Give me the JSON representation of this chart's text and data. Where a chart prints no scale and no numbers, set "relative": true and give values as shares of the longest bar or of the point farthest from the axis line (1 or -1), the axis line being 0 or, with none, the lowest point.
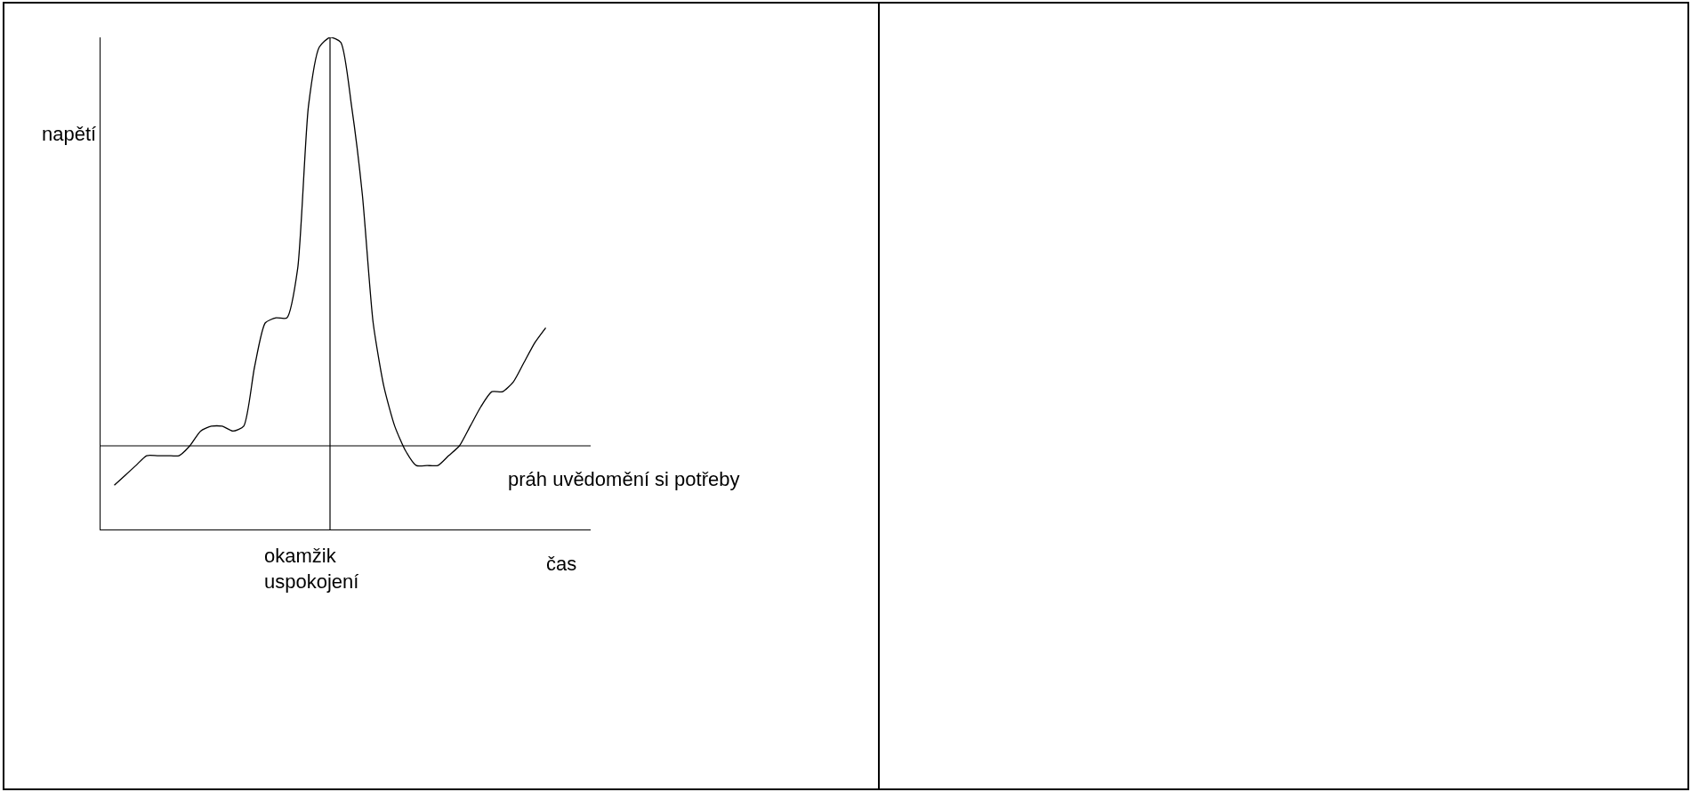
{
  "chart_data": {
    "type": "line",
    "relative": true,
    "ylabel": "napětí",
    "xlabel": "čas",
    "color": "#000000",
    "categories": [
      null,
      null,
      null,
      null,
      null,
      null,
      null,
      null,
      null,
      null,
      null,
      null,
      null,
      null,
      null,
      null,
      null,
      null,
      null,
      null,
      null,
      null,
      null,
      null,
      null,
      null,
      null,
      null,
      null,
      null,
      null,
      null,
      null,
      null,
      null,
      null,
      null,
      null,
      null,
      null,
      null
    ],
    "values": [
      0.09,
      0.11,
      0.13,
      0.15,
      0.15,
      0.15,
      0.15,
      0.17,
      0.2,
      0.21,
      0.21,
      0.2,
      0.21,
      0.33,
      0.42,
      0.43,
      0.43,
      0.53,
      0.86,
      0.98,
      1,
      0.99,
      0.86,
      0.68,
      0.42,
      0.29,
      0.21,
      0.16,
      0.13,
      0.13,
      0.13,
      0.15,
      0.17,
      0.21,
      0.25,
      0.28,
      0.28,
      0.3,
      0.34,
      0.38,
      0.41
    ],
    "ref_lines": [
      {
        "axis": "y",
        "value": 0.17,
        "label": "práh uvědomění si potřeby"
      }
    ],
    "annotations": [
      "okamžik\nuspokojení"
    ],
    "legend": false,
    "marker": "none",
    "line_style": "solid"
  }
}
